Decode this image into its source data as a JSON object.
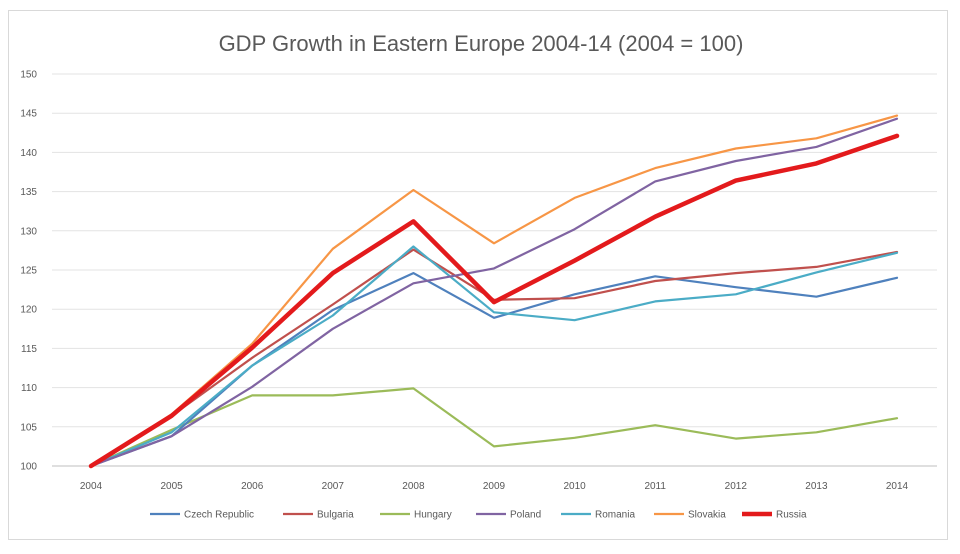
{
  "chart_data": {
    "type": "line",
    "title": "GDP Growth in Eastern Europe 2004-14 (2004 = 100)",
    "xlabel": "",
    "ylabel": "",
    "categories": [
      "2004",
      "2005",
      "2006",
      "2007",
      "2008",
      "2009",
      "2010",
      "2011",
      "2012",
      "2013",
      "2014"
    ],
    "y_ticks": [
      "100",
      "105",
      "110",
      "115",
      "120",
      "125",
      "130",
      "135",
      "140",
      "145",
      "150"
    ],
    "ylim": [
      100,
      150
    ],
    "grid": "horizontal",
    "legend_position": "bottom",
    "series": [
      {
        "name": "Czech Republic",
        "color": "#4f81bd",
        "values": [
          100,
          103.8,
          112.8,
          119.9,
          124.6,
          118.9,
          121.9,
          124.2,
          122.8,
          121.6,
          124.0
        ]
      },
      {
        "name": "Bulgaria",
        "color": "#c0504d",
        "values": [
          100,
          106.4,
          113.8,
          120.6,
          127.6,
          121.2,
          121.4,
          123.6,
          124.6,
          125.4,
          127.3
        ]
      },
      {
        "name": "Hungary",
        "color": "#9bbb59",
        "values": [
          100,
          104.6,
          109.0,
          109.0,
          109.9,
          102.5,
          103.6,
          105.2,
          103.5,
          104.3,
          106.1
        ]
      },
      {
        "name": "Poland",
        "color": "#8064a2",
        "values": [
          100,
          103.8,
          110.1,
          117.5,
          123.3,
          125.2,
          130.2,
          136.3,
          138.9,
          140.7,
          144.3
        ]
      },
      {
        "name": "Romania",
        "color": "#4bacc6",
        "values": [
          100,
          104.3,
          112.8,
          119.2,
          128.0,
          119.6,
          118.6,
          121.0,
          121.9,
          124.7,
          127.2
        ]
      },
      {
        "name": "Slovakia",
        "color": "#f79646",
        "values": [
          100,
          106.6,
          115.6,
          127.7,
          135.2,
          128.4,
          134.2,
          138.0,
          140.5,
          141.8,
          144.7
        ]
      },
      {
        "name": "Russia",
        "color": "#e31a1c",
        "values": [
          100,
          106.4,
          115.1,
          124.6,
          131.2,
          120.9,
          126.2,
          131.8,
          136.4,
          138.6,
          142.1
        ]
      }
    ]
  }
}
